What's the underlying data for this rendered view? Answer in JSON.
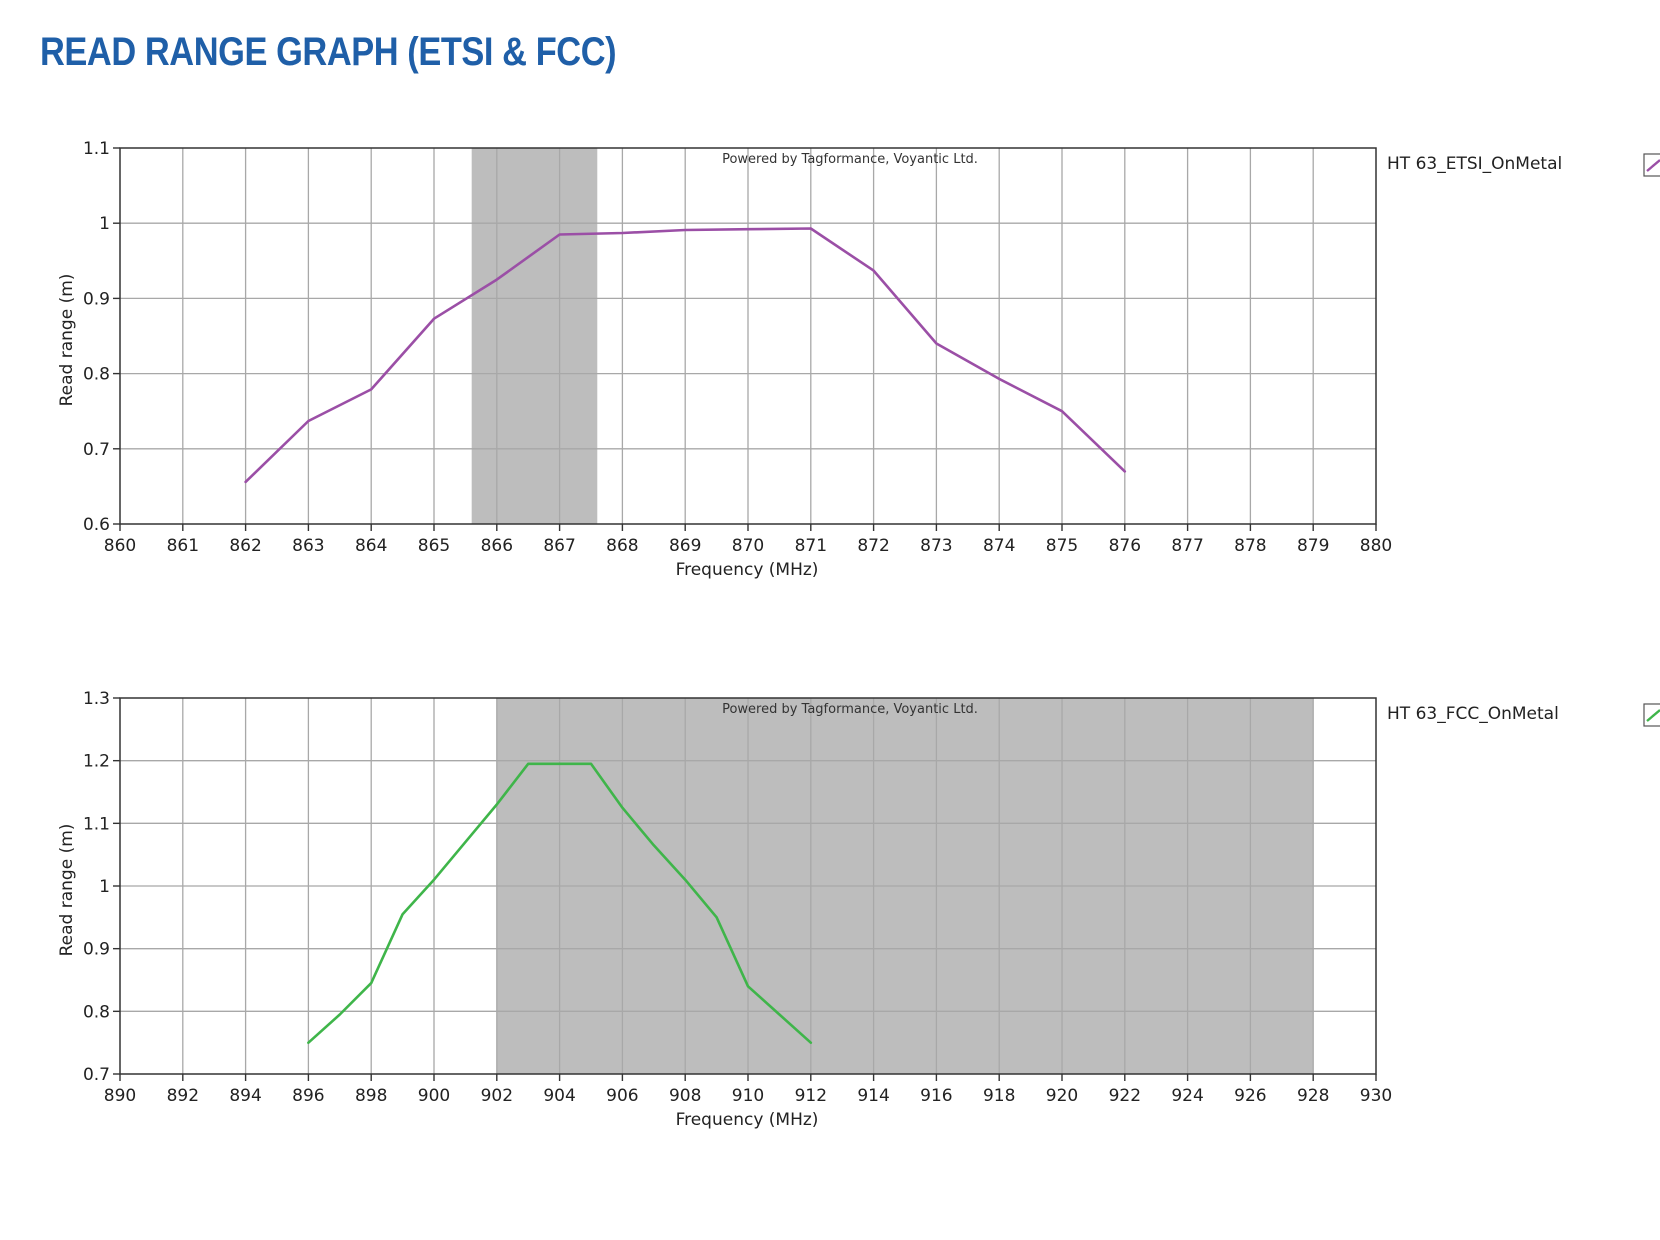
{
  "page": {
    "title": "READ RANGE GRAPH (ETSI & FCC)"
  },
  "chart_data": [
    {
      "type": "line",
      "id": "etsi",
      "title": "",
      "xlabel": "Frequency (MHz)",
      "ylabel": "Read range (m)",
      "xlim": [
        860,
        880
      ],
      "ylim": [
        0.6,
        1.1
      ],
      "x_ticks": [
        860,
        861,
        862,
        863,
        864,
        865,
        866,
        867,
        868,
        869,
        870,
        871,
        872,
        873,
        874,
        875,
        876,
        877,
        878,
        879,
        880
      ],
      "y_ticks": [
        0.6,
        0.7,
        0.8,
        0.9,
        1,
        1.1
      ],
      "y_tick_labels": [
        "0.6",
        "0.7",
        "0.8",
        "0.9",
        "1",
        "1.1"
      ],
      "grid": true,
      "legend_position": "right",
      "watermark": "Powered by Tagformance, Voyantic Ltd.",
      "shaded_band": {
        "from": 865.6,
        "to": 867.6,
        "color": "#bdbdbd"
      },
      "series": [
        {
          "name": "HT 63_ETSI_OnMetal",
          "color": "#9b4fa6",
          "x": [
            862,
            863,
            864,
            865,
            866,
            867,
            868,
            869,
            870,
            871,
            872,
            873,
            874,
            875,
            876
          ],
          "y": [
            0.656,
            0.737,
            0.779,
            0.873,
            0.925,
            0.985,
            0.987,
            0.991,
            0.992,
            0.993,
            0.937,
            0.84,
            0.793,
            0.75,
            0.67
          ]
        }
      ]
    },
    {
      "type": "line",
      "id": "fcc",
      "title": "",
      "xlabel": "Frequency (MHz)",
      "ylabel": "Read range (m)",
      "xlim": [
        890,
        930
      ],
      "ylim": [
        0.7,
        1.3
      ],
      "x_ticks": [
        890,
        892,
        894,
        896,
        898,
        900,
        902,
        904,
        906,
        908,
        910,
        912,
        914,
        916,
        918,
        920,
        922,
        924,
        926,
        928,
        930
      ],
      "y_ticks": [
        0.7,
        0.8,
        0.9,
        1,
        1.1,
        1.2,
        1.3
      ],
      "y_tick_labels": [
        "0.7",
        "0.8",
        "0.9",
        "1",
        "1.1",
        "1.2",
        "1.3"
      ],
      "grid": true,
      "legend_position": "right",
      "watermark": "Powered by Tagformance, Voyantic Ltd.",
      "shaded_band": {
        "from": 902,
        "to": 928,
        "color": "#bdbdbd"
      },
      "series": [
        {
          "name": "HT 63_FCC_OnMetal",
          "color": "#3fb54a",
          "x": [
            896,
            897,
            898,
            899,
            900,
            901,
            902,
            903,
            904,
            905,
            906,
            907,
            908,
            909,
            910,
            911,
            912
          ],
          "y": [
            0.75,
            0.795,
            0.845,
            0.955,
            1.01,
            1.07,
            1.13,
            1.195,
            1.195,
            1.195,
            1.125,
            1.065,
            1.01,
            0.95,
            0.84,
            0.795,
            0.75
          ]
        }
      ]
    }
  ]
}
